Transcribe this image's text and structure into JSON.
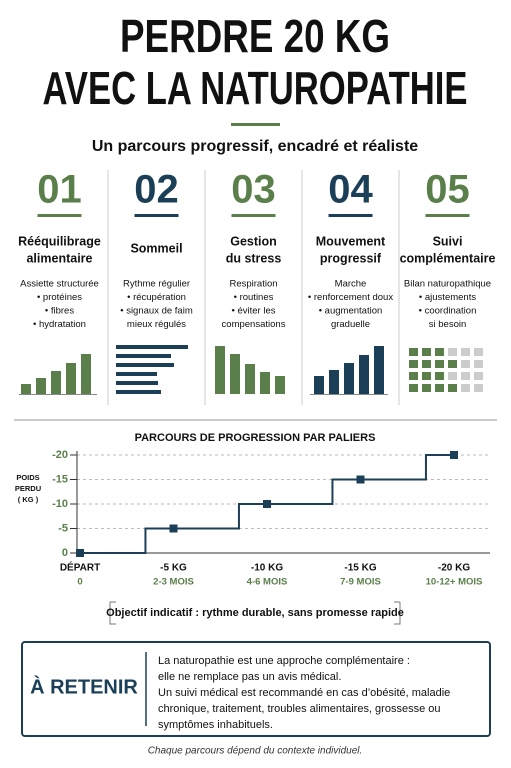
{
  "header": {
    "title_lines": [
      "PERDRE 20 KG",
      "AVEC LA NATUROPATHIE"
    ],
    "subtitle": "Un parcours progressif, encadré et réaliste"
  },
  "columns": [
    {
      "number": "01",
      "title_lines": [
        "Rééquilibrage",
        "alimentaire"
      ],
      "items": [
        "Assiette structurée",
        "• protéines",
        "• fibres",
        "• hydratation"
      ]
    },
    {
      "number": "02",
      "title_lines": [
        "Sommeil"
      ],
      "items": [
        "Rythme régulier",
        "• récupération",
        "• signaux de faim",
        "mieux régulés"
      ]
    },
    {
      "number": "03",
      "title_lines": [
        "Gestion",
        "du stress"
      ],
      "items": [
        "Respiration",
        "• routines",
        "• éviter les",
        "compensations"
      ]
    },
    {
      "number": "04",
      "title_lines": [
        "Mouvement",
        "progressif"
      ],
      "items": [
        "Marche",
        "• renforcement doux",
        "• augmentation",
        "graduelle"
      ]
    },
    {
      "number": "05",
      "title_lines": [
        "Suivi",
        "complémentaire"
      ],
      "items": [
        "Bilan naturopathique",
        "• ajustements",
        "• coordination",
        "si besoin"
      ]
    }
  ],
  "chart_data": {
    "type": "step",
    "title": "PARCOURS DE PROGRESSION PAR PALIERS",
    "y_label_lines": [
      "POIDS",
      "PERDU",
      "( KG )"
    ],
    "categories": [
      "DÉPART",
      "-5 KG",
      "-10 KG",
      "-15 KG",
      "-20 KG"
    ],
    "category_sublabels": [
      "0",
      "2-3 MOIS",
      "4-6 MOIS",
      "7-9 MOIS",
      "10-12+ MOIS"
    ],
    "values": [
      0,
      -5,
      -10,
      -15,
      -20
    ],
    "color": "#1b3f57",
    "ylim": [
      0,
      -20
    ],
    "yticks": [
      0,
      -5,
      -10,
      -15,
      -20
    ],
    "grid": true
  },
  "objective": "Objectif indicatif : rythme durable, sans promesse rapide",
  "callout": {
    "heading": "À RETENIR",
    "lines": [
      "La naturopathie est une approche complémentaire :",
      "elle ne remplace pas un avis médical.",
      "Un suivi médical est recommandé en cas d’obésité, maladie",
      "chronique, traitement, troubles alimentaires, grossesse ou",
      "symptômes inhabituels."
    ]
  },
  "footer": "Chaque parcours dépend du contexte individuel."
}
